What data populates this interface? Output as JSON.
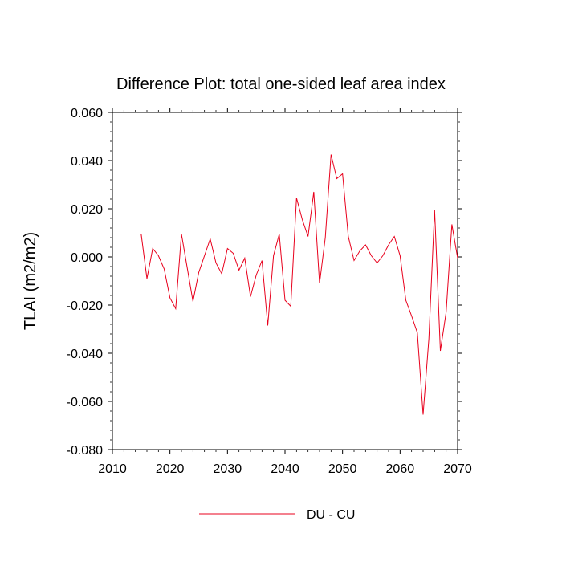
{
  "chart_data": {
    "type": "line",
    "title": "Difference Plot: total one-sided leaf area index",
    "xlabel": "",
    "ylabel": "TLAI  (m2/m2)",
    "xlim": [
      2010,
      2070
    ],
    "ylim": [
      -0.08,
      0.06
    ],
    "x_ticks": [
      2010,
      2020,
      2030,
      2040,
      2050,
      2060,
      2070
    ],
    "x_tick_labels": [
      "2010",
      "2020",
      "2030",
      "2040",
      "2050",
      "2060",
      "2070"
    ],
    "y_ticks": [
      -0.08,
      -0.06,
      -0.04,
      -0.02,
      0.0,
      0.02,
      0.04,
      0.06
    ],
    "y_tick_labels": [
      "-0.080",
      "-0.060",
      "-0.040",
      "-0.020",
      "0.000",
      "0.020",
      "0.040",
      "0.060"
    ],
    "grid": false,
    "legend_position": "bottom-center",
    "series": [
      {
        "name": "DU - CU",
        "color": "#e8001c",
        "x": [
          2015,
          2016,
          2017,
          2018,
          2019,
          2020,
          2021,
          2022,
          2023,
          2024,
          2025,
          2026,
          2027,
          2028,
          2029,
          2030,
          2031,
          2032,
          2033,
          2034,
          2035,
          2036,
          2037,
          2038,
          2039,
          2040,
          2041,
          2042,
          2043,
          2044,
          2045,
          2046,
          2047,
          2048,
          2049,
          2050,
          2051,
          2052,
          2053,
          2054,
          2055,
          2056,
          2057,
          2058,
          2059,
          2060,
          2061,
          2062,
          2063,
          2064,
          2065,
          2066,
          2067,
          2068,
          2069,
          2070
        ],
        "y": [
          0.0095,
          -0.009,
          0.0035,
          0.0005,
          -0.005,
          -0.017,
          -0.0215,
          0.0095,
          -0.0045,
          -0.0185,
          -0.0065,
          0.0005,
          0.0075,
          -0.0025,
          -0.007,
          0.0035,
          0.0015,
          -0.0055,
          -0.0005,
          -0.0165,
          -0.0075,
          -0.0015,
          -0.0285,
          0.0005,
          0.0095,
          -0.018,
          -0.0205,
          0.0245,
          0.0155,
          0.0085,
          0.027,
          -0.011,
          0.008,
          0.0425,
          0.0325,
          0.0345,
          0.0085,
          -0.0015,
          0.0025,
          0.005,
          0.0005,
          -0.0025,
          0.0005,
          0.005,
          0.0085,
          0.0005,
          -0.018,
          -0.0245,
          -0.0315,
          -0.0655,
          -0.034,
          0.0195,
          -0.039,
          -0.023,
          0.0135,
          -0.0005
        ]
      }
    ]
  }
}
